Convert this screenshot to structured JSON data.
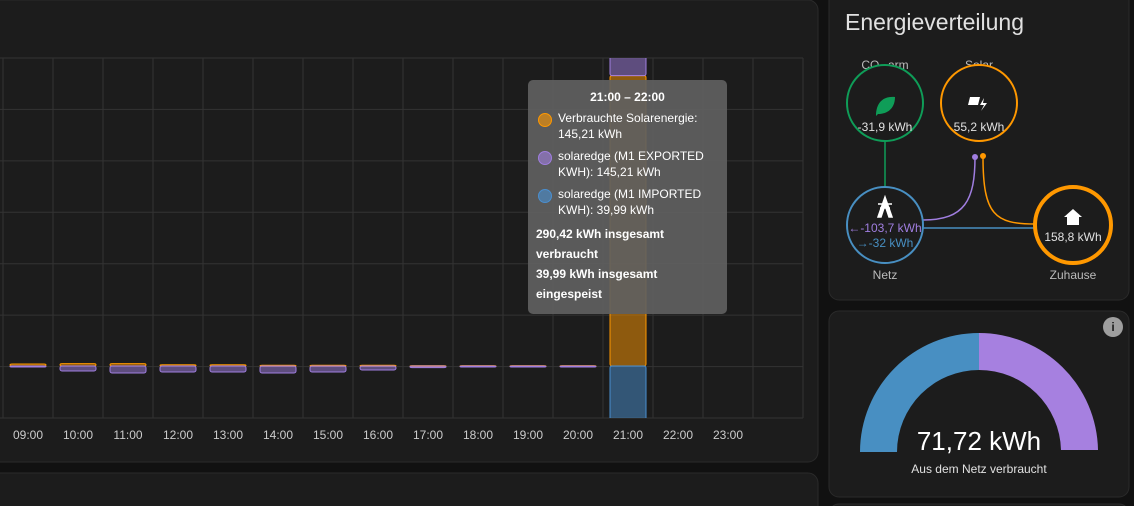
{
  "usage_chart": {
    "type": "bar",
    "categories": [
      "09:00",
      "10:00",
      "11:00",
      "12:00",
      "13:00",
      "14:00",
      "15:00",
      "16:00",
      "17:00",
      "18:00",
      "19:00",
      "20:00",
      "21:00",
      "22:00",
      "23:00"
    ],
    "series": [
      {
        "color": "#ff9800",
        "values": [
          1,
          1.2,
          1.2,
          0.6,
          0.6,
          0.4,
          0.4,
          0.4,
          0.2,
          0.2,
          0.2,
          0.2,
          145.21,
          null,
          null
        ]
      },
      {
        "color": "#a07ee0",
        "values": [
          -0.5,
          -2.5,
          -3.5,
          -3,
          -3,
          -3.5,
          -3,
          -2,
          -0.8,
          -0.3,
          -0.2,
          -0.1,
          145.21,
          null,
          null
        ]
      },
      {
        "color": "#4a8fd0",
        "values": [
          0,
          0,
          0,
          0,
          0,
          0,
          0,
          0,
          0,
          0,
          0,
          0,
          39.99,
          null,
          null
        ]
      }
    ],
    "ylim": [
      -26,
      154
    ],
    "tooltip": {
      "title": "21:00 – 22:00",
      "items": [
        "Verbrauchte Solarenergie: 145,21 kWh",
        "solaredge (M1 EXPORTED KWH): 145,21 kWh",
        "solaredge (M1 IMPORTED KWH): 39,99 kWh"
      ],
      "totals": [
        "290,42 kWh insgesamt verbraucht",
        "39,99 kWh insgesamt eingespeist"
      ]
    }
  },
  "energy_distribution": {
    "title": "Energieverteilung",
    "low_carbon": {
      "label": "CO₂-arm",
      "value": "-31,9 kWh"
    },
    "solar": {
      "label": "Solar",
      "value": "55,2 kWh"
    },
    "grid": {
      "label": "Netz",
      "consumed": "←-103,7 kWh",
      "returned": "→-32 kWh"
    },
    "home": {
      "label": "Zuhause",
      "value": "158,8 kWh"
    }
  },
  "gauge": {
    "value": "71,72 kWh",
    "label": "Aus dem Netz verbraucht"
  }
}
